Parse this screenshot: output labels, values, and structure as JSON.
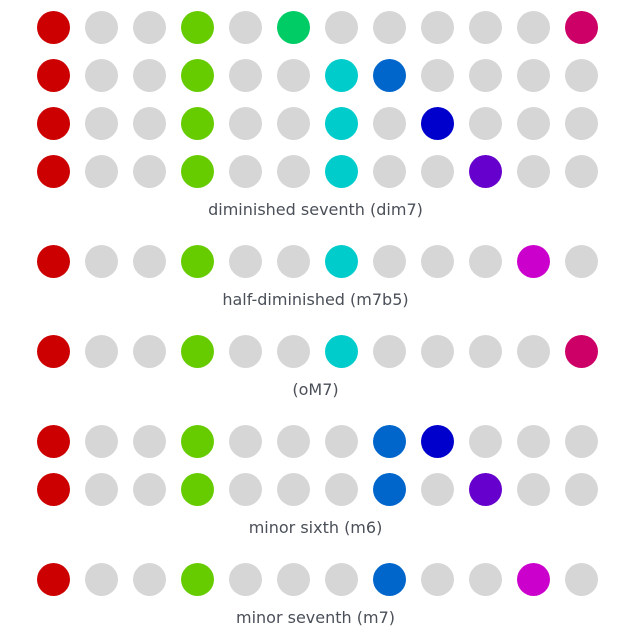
{
  "colors": {
    "off": "#d6d6d6",
    "0": "#cc0000",
    "3": "#66cc00",
    "5": "#00cc66",
    "6": "#00cccc",
    "7": "#0066cc",
    "8": "#0000cc",
    "9": "#6600cc",
    "10": "#cc00cc",
    "11": "#cc0066"
  },
  "groups": [
    {
      "caption": "diminished seventh (dim7)",
      "rows": [
        [
          0,
          3,
          5,
          11
        ],
        [
          0,
          3,
          6,
          7
        ],
        [
          0,
          3,
          6,
          8
        ],
        [
          0,
          3,
          6,
          9
        ]
      ]
    },
    {
      "caption": "half-diminished (m7b5)",
      "rows": [
        [
          0,
          3,
          6,
          10
        ]
      ]
    },
    {
      "caption": "(oM7)",
      "rows": [
        [
          0,
          3,
          6,
          11
        ]
      ]
    },
    {
      "caption": "minor sixth (m6)",
      "rows": [
        [
          0,
          3,
          7,
          8
        ],
        [
          0,
          3,
          7,
          9
        ]
      ]
    },
    {
      "caption": "minor seventh (m7)",
      "rows": [
        [
          0,
          3,
          7,
          10
        ]
      ]
    }
  ]
}
